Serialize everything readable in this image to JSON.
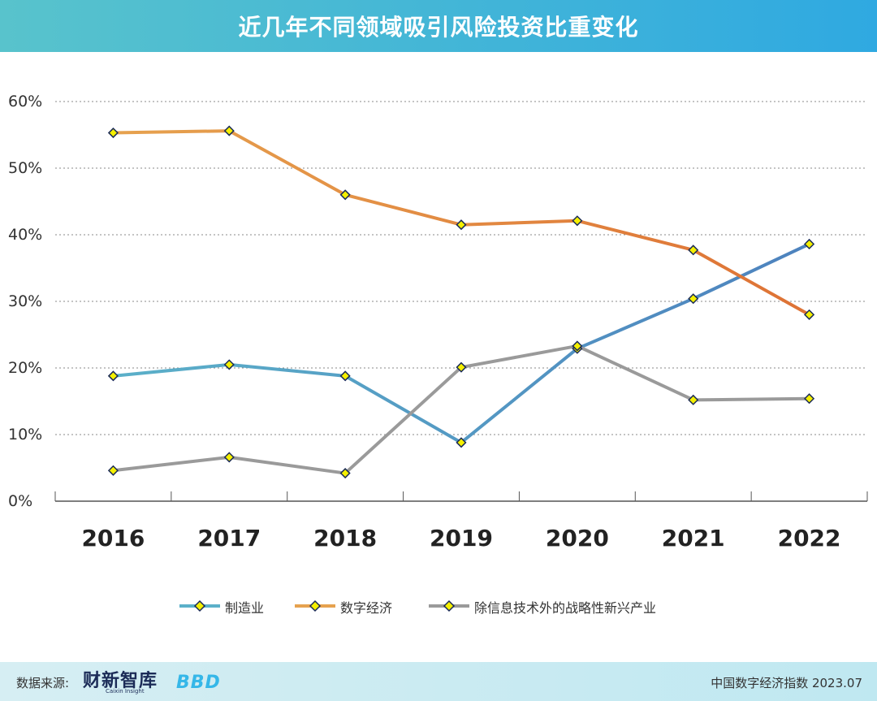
{
  "header": {
    "title": "近几年不同领域吸引风险投资比重变化"
  },
  "footer": {
    "source_label": "数据来源:",
    "brand_name": "财新智库",
    "brand_sub": "Caixin Insight",
    "logo_text": "BBD",
    "right_text": "中国数字经济指数 2023.07"
  },
  "colors": {
    "header_start": "#58c3cc",
    "header_end": "#2fa9e1",
    "marker_fill": "#f5f000",
    "marker_stroke": "#1b2b57"
  },
  "chart_data": {
    "type": "line",
    "categories": [
      "2016",
      "2017",
      "2018",
      "2019",
      "2020",
      "2021",
      "2022"
    ],
    "y_ticks": [
      "0%",
      "10%",
      "20%",
      "30%",
      "40%",
      "50%",
      "60%"
    ],
    "ylim": [
      0,
      60
    ],
    "grid": true,
    "legend_position": "bottom",
    "series": [
      {
        "name": "制造业",
        "color": "#5bb0c9",
        "color_end": "#4d82be",
        "values": [
          18.8,
          20.5,
          18.8,
          8.8,
          22.9,
          30.4,
          38.6
        ]
      },
      {
        "name": "数字经济",
        "color": "#e6a24f",
        "color_end": "#de7235",
        "values": [
          55.3,
          55.6,
          46.0,
          41.5,
          42.1,
          37.7,
          28.0
        ]
      },
      {
        "name": "除信息技术外的战略性新兴产业",
        "color": "#9a9a9a",
        "color_end": "#9a9a9a",
        "values": [
          4.6,
          6.6,
          4.2,
          20.1,
          23.3,
          15.2,
          15.4
        ]
      }
    ]
  }
}
